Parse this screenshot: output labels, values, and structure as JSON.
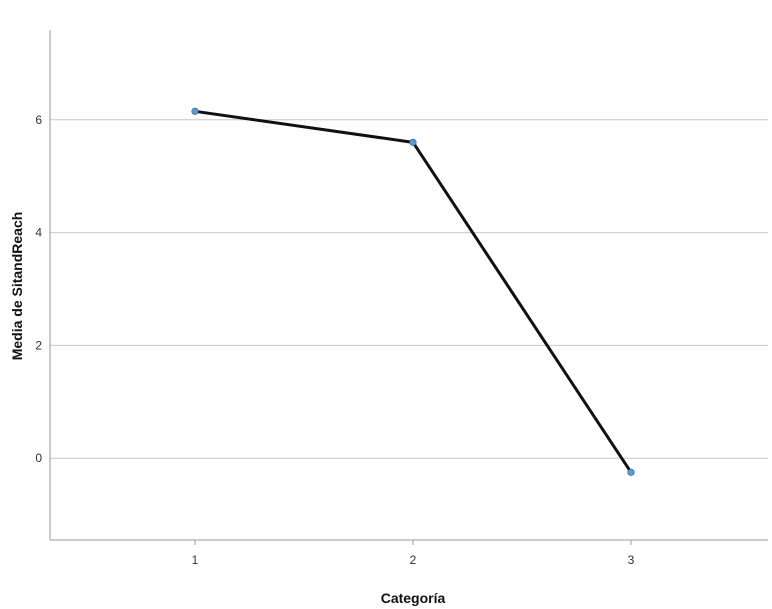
{
  "chart_data": {
    "type": "line",
    "title": "",
    "xlabel": "Categoría",
    "ylabel": "Media de SitandReach",
    "categories": [
      "1",
      "2",
      "3"
    ],
    "series": [
      {
        "values": [
          6.15,
          5.6,
          -0.25
        ]
      }
    ],
    "ylim": [
      -1.45,
      7.45
    ],
    "yticks": [
      "6",
      "4",
      "2",
      "0"
    ],
    "ytick_values": [
      6,
      4,
      2,
      0
    ],
    "grid": "horizontal",
    "legend": "none",
    "line_color": "#111111",
    "marker_color": "#5b9bd5",
    "grid_color": "#c8c8c8",
    "axis_color": "#999999"
  }
}
